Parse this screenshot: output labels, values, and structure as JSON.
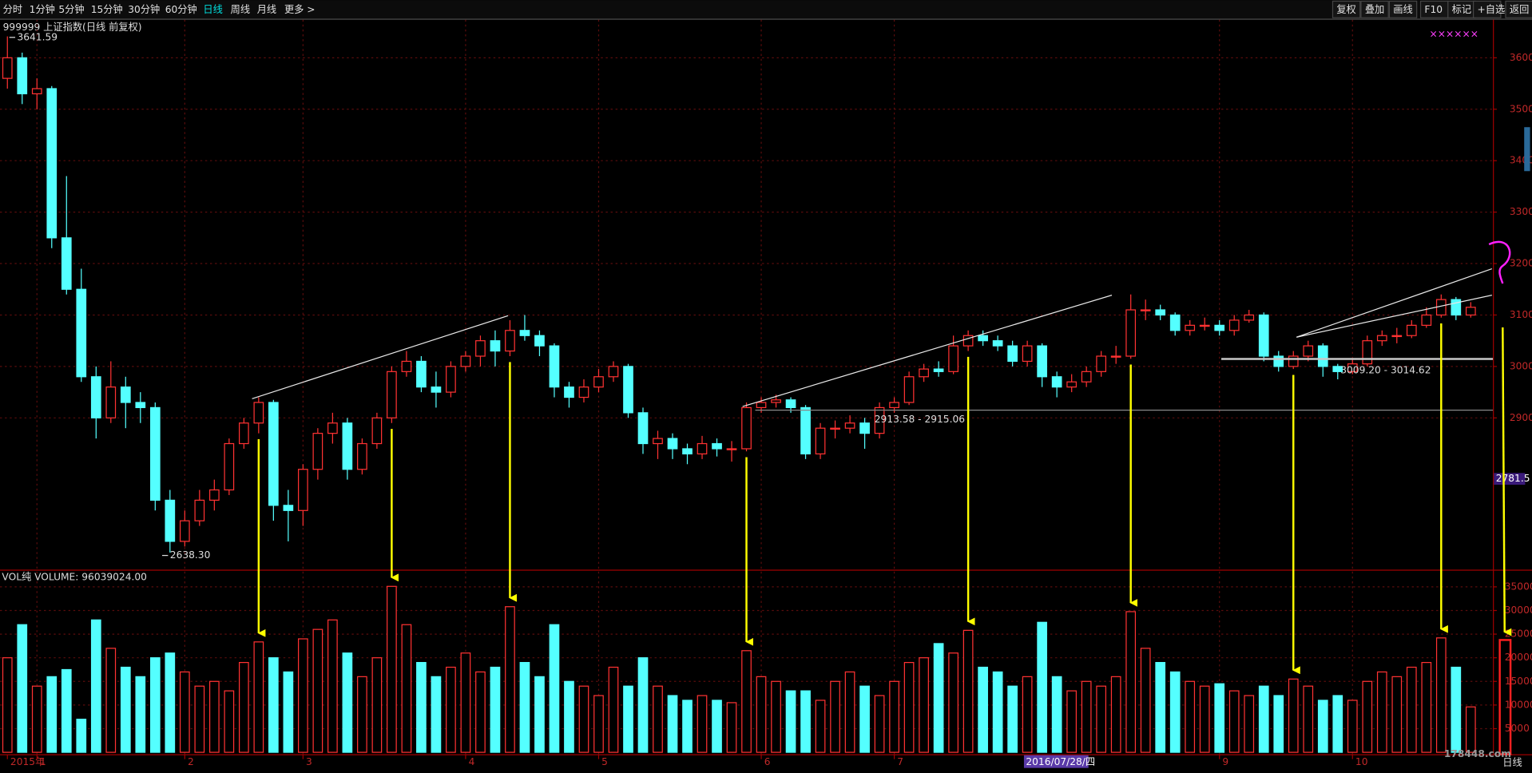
{
  "toolbar": {
    "left": [
      "分时",
      "1分钟",
      "5分钟",
      "15分钟",
      "30分钟",
      "60分钟",
      "日线",
      "周线",
      "月线",
      "更多 >"
    ],
    "active": "日线",
    "right": [
      "复权",
      "叠加",
      "画线",
      "F10",
      "标记",
      "+自选",
      "返回"
    ]
  },
  "header": "999999 上证指数(日线 前复权)",
  "watermark": "178448.com",
  "period_label": "日线",
  "chart_data": [
    {
      "type": "candlestick",
      "up_color": "#ff3232",
      "down_color": "#54ffff",
      "ylim": [
        2605,
        3674
      ],
      "yticks": [
        2900,
        3000,
        3100,
        3200,
        3300,
        3400,
        3500,
        3600
      ],
      "grid": true,
      "xlim": [
        -0.5,
        100.5
      ],
      "xticks": [
        {
          "value": 0,
          "label": "2015年"
        },
        {
          "value": 2,
          "label": "1"
        },
        {
          "value": 12,
          "label": "2"
        },
        {
          "value": 20,
          "label": "3"
        },
        {
          "value": 31,
          "label": "4"
        },
        {
          "value": 40,
          "label": "5"
        },
        {
          "value": 51,
          "label": "6"
        },
        {
          "value": 60,
          "label": "7"
        },
        {
          "value": 82,
          "label": "9"
        },
        {
          "value": 91,
          "label": "10"
        }
      ],
      "cursor_date": "2016/07/28/四",
      "cursor_price": 2781.5,
      "extreme_labels": {
        "high": "3641.59",
        "low": "2638.30"
      },
      "range_lines": [
        {
          "label": "2913.58 - 2915.06",
          "from": 2913.58,
          "to": 2915.06
        },
        {
          "label": "3009.20 - 3014.62",
          "from": 3009.2,
          "to": 3014.62
        }
      ],
      "ohlc": [
        [
          3560,
          3641.59,
          3540,
          3600
        ],
        [
          3600,
          3610,
          3510,
          3530
        ],
        [
          3530,
          3560,
          3500,
          3540
        ],
        [
          3540,
          3545,
          3230,
          3250
        ],
        [
          3250,
          3370,
          3140,
          3150
        ],
        [
          3150,
          3190,
          2970,
          2980
        ],
        [
          2980,
          3000,
          2860,
          2900
        ],
        [
          2900,
          3010,
          2890,
          2960
        ],
        [
          2960,
          2980,
          2880,
          2930
        ],
        [
          2930,
          2950,
          2890,
          2920
        ],
        [
          2920,
          2930,
          2720,
          2740
        ],
        [
          2740,
          2760,
          2638.3,
          2660
        ],
        [
          2660,
          2720,
          2650,
          2700
        ],
        [
          2700,
          2760,
          2690,
          2740
        ],
        [
          2740,
          2780,
          2720,
          2760
        ],
        [
          2760,
          2860,
          2750,
          2850
        ],
        [
          2850,
          2900,
          2840,
          2890
        ],
        [
          2890,
          2940,
          2870,
          2930
        ],
        [
          2930,
          2935,
          2700,
          2730
        ],
        [
          2730,
          2760,
          2660,
          2720
        ],
        [
          2720,
          2810,
          2690,
          2800
        ],
        [
          2800,
          2880,
          2780,
          2870
        ],
        [
          2870,
          2910,
          2850,
          2890
        ],
        [
          2890,
          2900,
          2780,
          2800
        ],
        [
          2800,
          2860,
          2790,
          2850
        ],
        [
          2850,
          2910,
          2840,
          2900
        ],
        [
          2900,
          3000,
          2890,
          2990
        ],
        [
          2990,
          3030,
          2980,
          3010
        ],
        [
          3010,
          3020,
          2950,
          2960
        ],
        [
          2960,
          2990,
          2920,
          2950
        ],
        [
          2950,
          3010,
          2940,
          3000
        ],
        [
          3000,
          3030,
          2990,
          3020
        ],
        [
          3020,
          3060,
          3000,
          3050
        ],
        [
          3050,
          3070,
          3000,
          3030
        ],
        [
          3030,
          3090,
          3020,
          3070
        ],
        [
          3070,
          3100,
          3050,
          3060
        ],
        [
          3060,
          3070,
          3020,
          3040
        ],
        [
          3040,
          3045,
          2940,
          2960
        ],
        [
          2960,
          2970,
          2920,
          2940
        ],
        [
          2940,
          2975,
          2930,
          2960
        ],
        [
          2960,
          2995,
          2950,
          2980
        ],
        [
          2980,
          3010,
          2970,
          3000
        ],
        [
          3000,
          3005,
          2900,
          2910
        ],
        [
          2910,
          2920,
          2830,
          2850
        ],
        [
          2850,
          2875,
          2820,
          2860
        ],
        [
          2860,
          2870,
          2820,
          2840
        ],
        [
          2840,
          2850,
          2810,
          2830
        ],
        [
          2830,
          2865,
          2820,
          2850
        ],
        [
          2850,
          2860,
          2825,
          2840
        ],
        [
          2840,
          2855,
          2815,
          2840
        ],
        [
          2840,
          2930,
          2835,
          2920
        ],
        [
          2920,
          2940,
          2910,
          2930
        ],
        [
          2930,
          2945,
          2920,
          2935
        ],
        [
          2935,
          2940,
          2910,
          2920
        ],
        [
          2920,
          2925,
          2820,
          2830
        ],
        [
          2830,
          2890,
          2820,
          2880
        ],
        [
          2880,
          2895,
          2860,
          2880
        ],
        [
          2880,
          2905,
          2870,
          2890
        ],
        [
          2890,
          2900,
          2840,
          2870
        ],
        [
          2870,
          2930,
          2860,
          2920
        ],
        [
          2920,
          2940,
          2910,
          2930
        ],
        [
          2930,
          2990,
          2925,
          2980
        ],
        [
          2980,
          3005,
          2970,
          2995
        ],
        [
          2995,
          3010,
          2980,
          2990
        ],
        [
          2990,
          3060,
          2985,
          3040
        ],
        [
          3040,
          3070,
          3030,
          3060
        ],
        [
          3060,
          3070,
          3040,
          3050
        ],
        [
          3050,
          3060,
          3030,
          3040
        ],
        [
          3040,
          3050,
          3000,
          3010
        ],
        [
          3010,
          3050,
          3000,
          3040
        ],
        [
          3040,
          3045,
          2960,
          2980
        ],
        [
          2980,
          2990,
          2940,
          2960
        ],
        [
          2960,
          2985,
          2950,
          2970
        ],
        [
          2970,
          3000,
          2960,
          2990
        ],
        [
          2990,
          3030,
          2980,
          3020
        ],
        [
          3020,
          3040,
          3005,
          3020
        ],
        [
          3020,
          3140,
          3015,
          3110
        ],
        [
          3110,
          3130,
          3090,
          3110
        ],
        [
          3110,
          3120,
          3090,
          3100
        ],
        [
          3100,
          3105,
          3060,
          3070
        ],
        [
          3070,
          3090,
          3060,
          3080
        ],
        [
          3080,
          3095,
          3070,
          3080
        ],
        [
          3080,
          3090,
          3060,
          3070
        ],
        [
          3070,
          3100,
          3060,
          3090
        ],
        [
          3090,
          3110,
          3085,
          3100
        ],
        [
          3100,
          3105,
          3010,
          3020
        ],
        [
          3020,
          3030,
          2990,
          3000
        ],
        [
          3000,
          3030,
          2995,
          3020
        ],
        [
          3020,
          3050,
          3010,
          3040
        ],
        [
          3040,
          3045,
          2980,
          3000
        ],
        [
          3000,
          3005,
          2975,
          2990
        ],
        [
          2990,
          3015,
          2985,
          3005
        ],
        [
          3005,
          3060,
          3000,
          3050
        ],
        [
          3050,
          3070,
          3040,
          3060
        ],
        [
          3060,
          3075,
          3045,
          3060
        ],
        [
          3060,
          3090,
          3055,
          3080
        ],
        [
          3080,
          3115,
          3075,
          3100
        ],
        [
          3100,
          3140,
          3095,
          3130
        ],
        [
          3130,
          3135,
          3090,
          3100
        ],
        [
          3100,
          3125,
          3095,
          3115
        ]
      ]
    },
    {
      "type": "bar",
      "title": "VOL纯 VOLUME: 96039024.00",
      "ylim": [
        0,
        39050
      ],
      "yticks": [
        5000,
        10000,
        15000,
        20000,
        25000,
        30000,
        35000
      ],
      "grid": true,
      "values": [
        20000,
        27000,
        14000,
        16000,
        17500,
        7000,
        28000,
        22000,
        18000,
        16000,
        20000,
        21000,
        17000,
        14000,
        15000,
        13000,
        19000,
        23350,
        20000,
        17000,
        24000,
        26000,
        28000,
        21000,
        16000,
        20000,
        35100,
        27000,
        19000,
        16000,
        18000,
        21000,
        17000,
        18000,
        30800,
        19000,
        16000,
        27000,
        15000,
        14000,
        12000,
        18000,
        14000,
        20000,
        14000,
        12000,
        11000,
        12000,
        11000,
        10500,
        21500,
        16000,
        15000,
        13000,
        13000,
        11000,
        15000,
        17000,
        14000,
        12000,
        15000,
        19000,
        20000,
        23000,
        21000,
        25800,
        18000,
        17000,
        14000,
        16000,
        27500,
        16000,
        13000,
        15000,
        14000,
        16000,
        29750,
        22000,
        19000,
        17000,
        15000,
        14000,
        14500,
        13000,
        12000,
        14000,
        12000,
        15500,
        14000,
        11000,
        12000,
        11000,
        15000,
        17000,
        16000,
        18000,
        19000,
        24200,
        18000,
        9604
      ]
    }
  ]
}
